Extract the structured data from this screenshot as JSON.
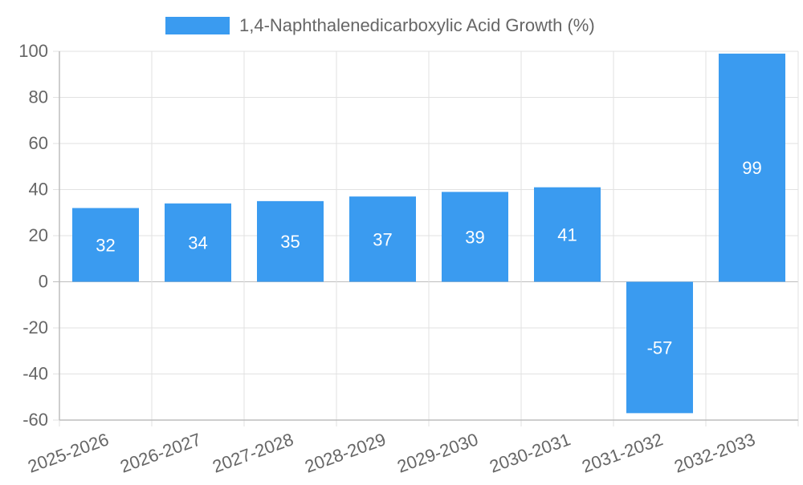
{
  "chart_data": {
    "type": "bar",
    "categories": [
      "2025-2026",
      "2026-2027",
      "2027-2028",
      "2028-2029",
      "2029-2030",
      "2030-2031",
      "2031-2032",
      "2032-2033"
    ],
    "series": [
      {
        "name": "1,4-Naphthalenedicarboxylic Acid Growth (%)",
        "values": [
          32,
          34,
          35,
          37,
          39,
          41,
          -57,
          99
        ],
        "color": "#3a9bf0"
      }
    ],
    "ylim": [
      -60,
      100
    ],
    "yticks": [
      -60,
      -40,
      -20,
      0,
      20,
      40,
      60,
      80,
      100
    ],
    "grid": true,
    "legend": "top-center",
    "data_labels": true
  }
}
